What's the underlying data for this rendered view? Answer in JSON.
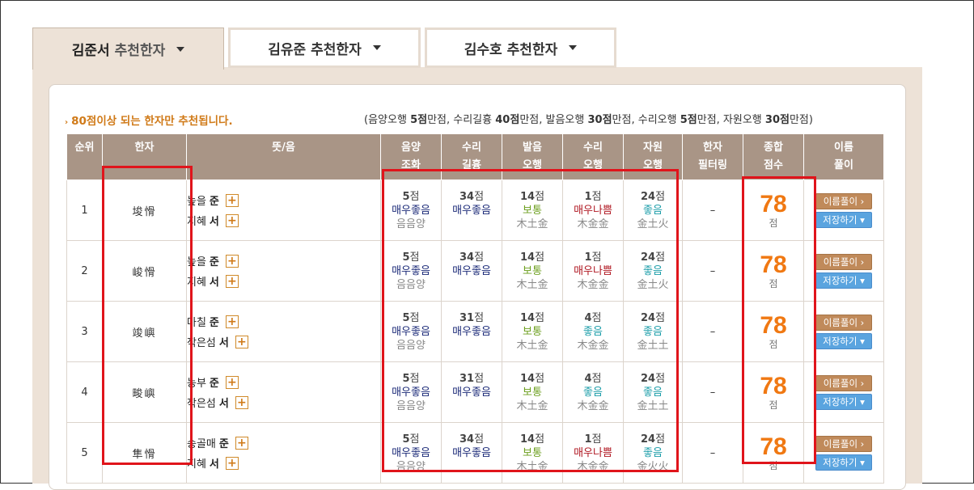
{
  "tabs": [
    {
      "name": "김준서",
      "suffix": "추천한자"
    },
    {
      "name": "김유준",
      "suffix": "추천한자"
    },
    {
      "name": "김수호",
      "suffix": "추천한자"
    }
  ],
  "notice": {
    "bullet": "›",
    "text": "80점이상 되는 한자만 추천됩니다."
  },
  "scoring": {
    "open": "(",
    "items": [
      {
        "label": "음양오행 ",
        "points": "5점",
        "rest": "만점, "
      },
      {
        "label": "수리길흉 ",
        "points": "40점",
        "rest": "만점, "
      },
      {
        "label": "발음오행 ",
        "points": "30점",
        "rest": "만점, "
      },
      {
        "label": "수리오행 ",
        "points": "5점",
        "rest": "만점, "
      },
      {
        "label": "자원오행 ",
        "points": "30점",
        "rest": "만점)"
      }
    ]
  },
  "headers": [
    {
      "l1": "순위",
      "l2": ""
    },
    {
      "l1": "한자",
      "l2": ""
    },
    {
      "l1": "뜻/음",
      "l2": ""
    },
    {
      "l1": "음양",
      "l2": "조화"
    },
    {
      "l1": "수리",
      "l2": "길흉"
    },
    {
      "l1": "발음",
      "l2": "오행"
    },
    {
      "l1": "수리",
      "l2": "오행"
    },
    {
      "l1": "자원",
      "l2": "오행"
    },
    {
      "l1": "한자",
      "l2": "필터링"
    },
    {
      "l1": "종합",
      "l2": "점수"
    },
    {
      "l1": "이름",
      "l2": "풀이"
    }
  ],
  "point_unit": "점",
  "filter_value": "–",
  "buttons": {
    "interpret": "이름풀이 ›",
    "save": "저장하기 ▾"
  },
  "rows": [
    {
      "rank": "1",
      "hanja": "埈愲",
      "meaning": [
        {
          "ko": "높을",
          "eum": "준"
        },
        {
          "ko": "지혜",
          "eum": "서"
        }
      ],
      "eumyang": {
        "p": "5",
        "g": "매우좋음",
        "s": "음음양"
      },
      "suri": {
        "p": "34",
        "g": "매우좋음"
      },
      "baleum": {
        "p": "14",
        "g": "보통",
        "s": "木土金"
      },
      "suriohaeng": {
        "p": "1",
        "g": "매우나쁨",
        "s": "木金金"
      },
      "jawon": {
        "p": "24",
        "g": "좋음",
        "s": "金土火"
      },
      "total": "78"
    },
    {
      "rank": "2",
      "hanja": "峻愲",
      "meaning": [
        {
          "ko": "높을",
          "eum": "준"
        },
        {
          "ko": "지혜",
          "eum": "서"
        }
      ],
      "eumyang": {
        "p": "5",
        "g": "매우좋음",
        "s": "음음양"
      },
      "suri": {
        "p": "34",
        "g": "매우좋음"
      },
      "baleum": {
        "p": "14",
        "g": "보통",
        "s": "木土金"
      },
      "suriohaeng": {
        "p": "1",
        "g": "매우나쁨",
        "s": "木金金"
      },
      "jawon": {
        "p": "24",
        "g": "좋음",
        "s": "金土火"
      },
      "total": "78"
    },
    {
      "rank": "3",
      "hanja": "竣嶼",
      "meaning": [
        {
          "ko": "마칠",
          "eum": "준"
        },
        {
          "ko": "작은섬",
          "eum": "서"
        }
      ],
      "eumyang": {
        "p": "5",
        "g": "매우좋음",
        "s": "음음양"
      },
      "suri": {
        "p": "31",
        "g": "매우좋음"
      },
      "baleum": {
        "p": "14",
        "g": "보통",
        "s": "木土金"
      },
      "suriohaeng": {
        "p": "4",
        "g": "좋음",
        "s": "木金金"
      },
      "jawon": {
        "p": "24",
        "g": "좋음",
        "s": "金土土"
      },
      "total": "78"
    },
    {
      "rank": "4",
      "hanja": "畯嶼",
      "meaning": [
        {
          "ko": "농부",
          "eum": "준"
        },
        {
          "ko": "작은섬",
          "eum": "서"
        }
      ],
      "eumyang": {
        "p": "5",
        "g": "매우좋음",
        "s": "음음양"
      },
      "suri": {
        "p": "31",
        "g": "매우좋음"
      },
      "baleum": {
        "p": "14",
        "g": "보통",
        "s": "木土金"
      },
      "suriohaeng": {
        "p": "4",
        "g": "좋음",
        "s": "木金金"
      },
      "jawon": {
        "p": "24",
        "g": "좋음",
        "s": "金土土"
      },
      "total": "78"
    },
    {
      "rank": "5",
      "hanja": "隼愲",
      "meaning": [
        {
          "ko": "송골매",
          "eum": "준"
        },
        {
          "ko": "지혜",
          "eum": "서"
        }
      ],
      "eumyang": {
        "p": "5",
        "g": "매우좋음",
        "s": "음음양"
      },
      "suri": {
        "p": "34",
        "g": "매우좋음"
      },
      "baleum": {
        "p": "14",
        "g": "보통",
        "s": "木土金"
      },
      "suriohaeng": {
        "p": "1",
        "g": "매우나쁨",
        "s": "木金金"
      },
      "jawon": {
        "p": "24",
        "g": "좋음",
        "s": "金火火"
      },
      "total": "78"
    }
  ],
  "colors": {
    "tab_bg": "#ede2d7",
    "header_bg": "#a99586",
    "accent_orange": "#f07812",
    "highlight_red": "#e0141b",
    "navy": "#1b2a78",
    "green": "#6b9e1c",
    "red": "#b01822",
    "teal": "#199ca8"
  }
}
